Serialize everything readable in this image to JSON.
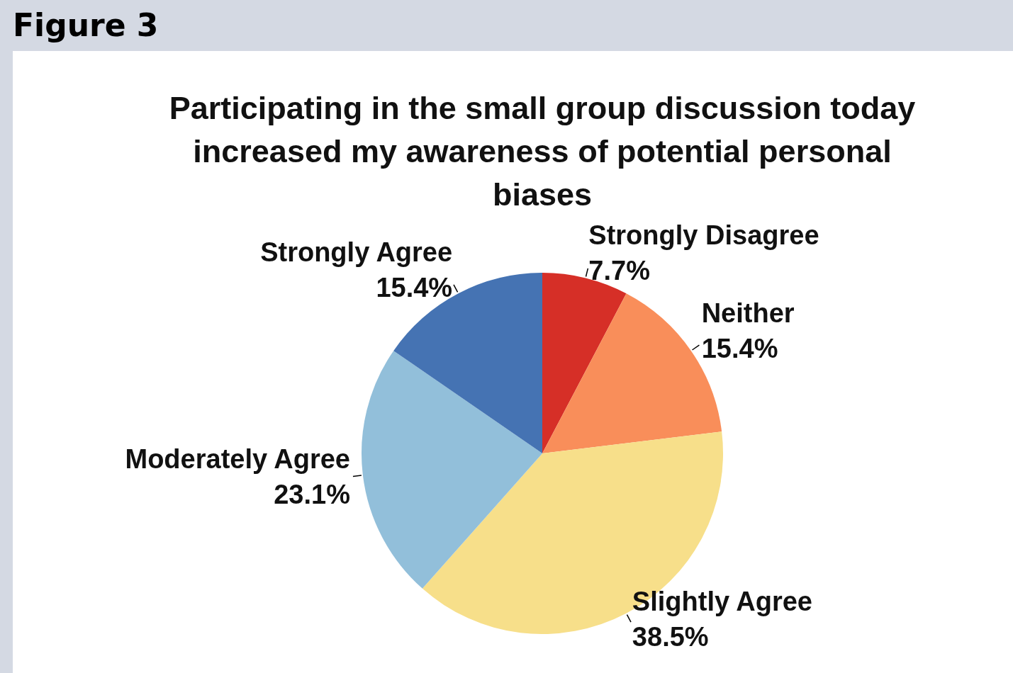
{
  "chart_data": {
    "type": "pie",
    "title": "Participating in the small group discussion today increased my awareness of potential personal biases",
    "annotations": [
      "Figure 3"
    ],
    "categories": [
      "Strongly Disagree",
      "Neither",
      "Slightly Agree",
      "Moderately Agree",
      "Strongly Agree"
    ],
    "values": [
      7.7,
      15.4,
      38.5,
      23.1,
      15.4
    ],
    "value_labels": [
      "7.7%",
      "15.4%",
      "38.5%",
      "23.1%",
      "15.4%"
    ],
    "colors": [
      "#d62f27",
      "#f98e5a",
      "#f7df8a",
      "#92bfda",
      "#4573b3"
    ],
    "legend": false
  }
}
